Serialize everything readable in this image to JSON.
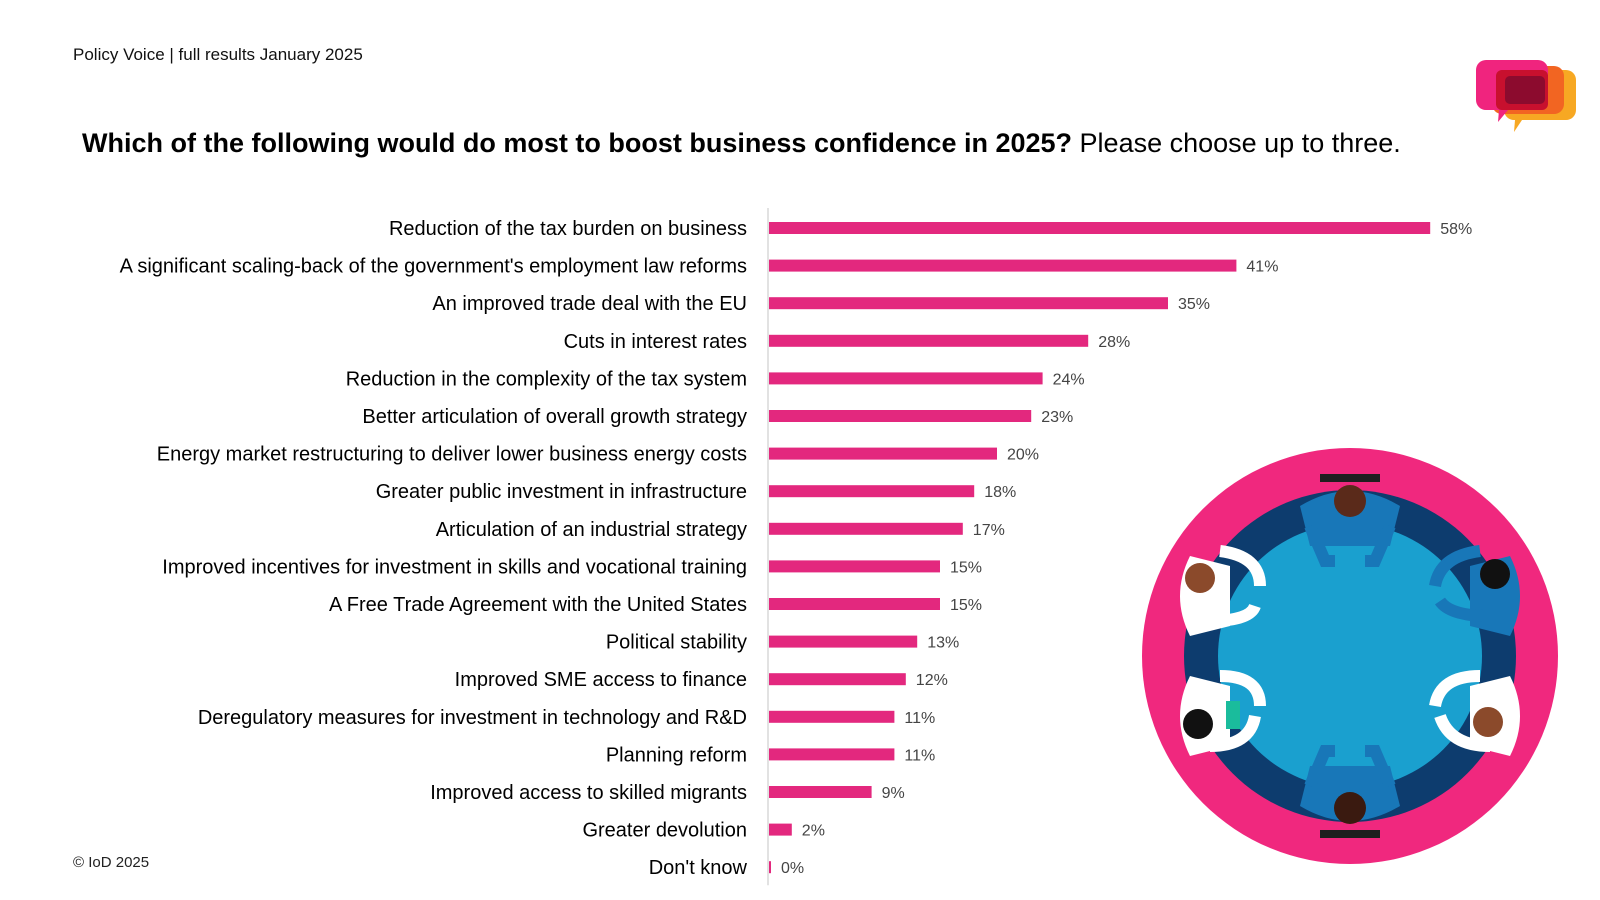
{
  "header": {
    "note": "Policy Voice | full results January 2025"
  },
  "title": {
    "question": "Which of the following would do most to boost business confidence in 2025?",
    "instruction": "Please choose up to three."
  },
  "footer": {
    "copyright": "© IoD 2025"
  },
  "colors": {
    "bar": "#E3287E",
    "axis": "#D9D9D9",
    "logo_pink": "#F0247E",
    "logo_red": "#C8102E",
    "logo_orange": "#F26522",
    "logo_yellow": "#F7A823",
    "ring_outer": "#F0287E",
    "ring_inner": "#0D3C6E",
    "table": "#1AA0CF"
  },
  "icons": [
    "speech-bubbles-logo",
    "round-table-meeting-illustration"
  ],
  "chart_data": {
    "type": "bar",
    "orientation": "horizontal",
    "title": "Which of the following would do most to boost business confidence in 2025?",
    "xlim": [
      0,
      60
    ],
    "grid": false,
    "legend": "none",
    "value_suffix": "%",
    "categories": [
      "Reduction of the tax burden on business",
      "A significant scaling-back of the government's employment law reforms",
      "An improved trade deal with the EU",
      "Cuts in interest rates",
      "Reduction in the complexity of the tax system",
      "Better articulation of overall growth strategy",
      "Energy market restructuring to deliver lower business energy costs",
      "Greater public investment in infrastructure",
      "Articulation of an industrial strategy",
      "Improved incentives for investment in skills and vocational training",
      "A Free Trade Agreement with the United States",
      "Political stability",
      "Improved SME access to finance",
      "Deregulatory measures for investment in technology and R&D",
      "Planning reform",
      "Improved access to skilled migrants",
      "Greater devolution",
      "Don't know"
    ],
    "values": [
      58,
      41,
      35,
      28,
      24,
      23,
      20,
      18,
      17,
      15,
      15,
      13,
      12,
      11,
      11,
      9,
      2,
      0
    ],
    "value_labels": [
      "58%",
      "41%",
      "35%",
      "28%",
      "24%",
      "23%",
      "20%",
      "18%",
      "17%",
      "15%",
      "15%",
      "13%",
      "12%",
      "11%",
      "11%",
      "9%",
      "2%",
      "0%"
    ]
  }
}
